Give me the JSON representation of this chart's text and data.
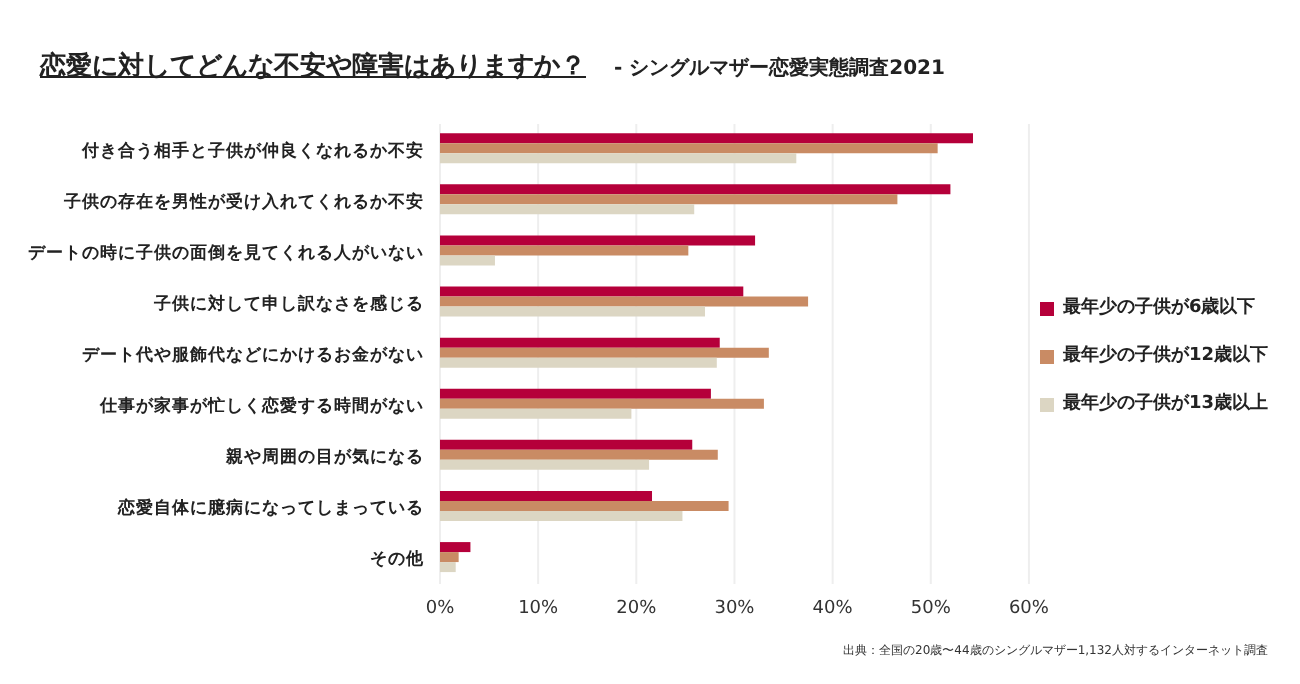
{
  "chart_data": {
    "type": "bar",
    "orientation": "horizontal",
    "title": "恋愛に対してどんな不安や障害はありますか？",
    "subtitle": "- シングルマザー恋愛実態調査2021",
    "categories": [
      "付き合う相手と子供が仲良くなれるか不安",
      "子供の存在を男性が受け入れてくれるか不安",
      "デートの時に子供の面倒を見てくれる人がいない",
      "子供に対して申し訳なさを感じる",
      "デート代や服飾代などにかけるお金がない",
      "仕事が家事が忙しく恋愛する時間がない",
      "親や周囲の目が気になる",
      "恋愛自体に臆病になってしまっている",
      "その他"
    ],
    "series": [
      {
        "name": "最年少の子供が6歳以下",
        "color": "#b5003a",
        "values": [
          54.3,
          52.0,
          32.1,
          30.9,
          28.5,
          27.6,
          25.7,
          21.6,
          3.1
        ]
      },
      {
        "name": "最年少の子供が12歳以下",
        "color": "#c98b64",
        "values": [
          50.7,
          46.6,
          25.3,
          37.5,
          33.5,
          33.0,
          28.3,
          29.4,
          1.9
        ]
      },
      {
        "name": "最年少の子供が13歳以上",
        "color": "#dcd6c3",
        "values": [
          36.3,
          25.9,
          5.6,
          27.0,
          28.2,
          19.5,
          21.3,
          24.7,
          1.6
        ]
      }
    ],
    "xlim": [
      0,
      60
    ],
    "xticks": [
      {
        "value": 0,
        "label": "0%"
      },
      {
        "value": 10,
        "label": "10%"
      },
      {
        "value": 20,
        "label": "20%"
      },
      {
        "value": 30,
        "label": "30%"
      },
      {
        "value": 40,
        "label": "40%"
      },
      {
        "value": 50,
        "label": "50%"
      },
      {
        "value": 60,
        "label": "60%"
      }
    ],
    "grid": "x",
    "legend": "right",
    "annotations": [
      "出典：全国の20歳〜44歳のシングルマザー1,132人対するインターネット調査"
    ]
  }
}
